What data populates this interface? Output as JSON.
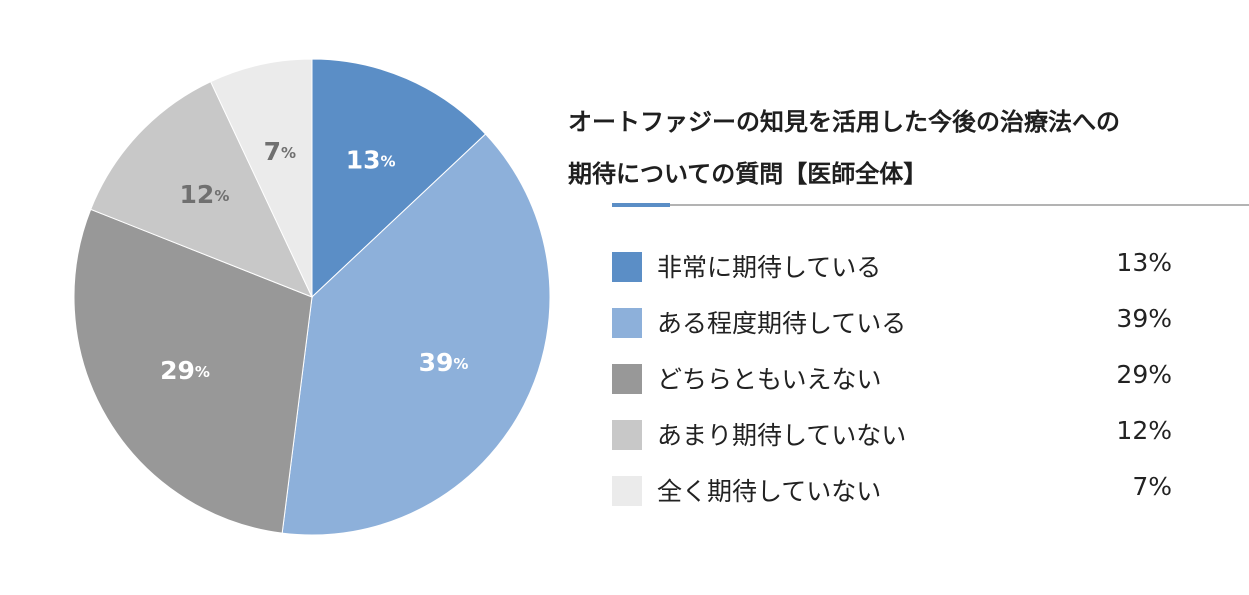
{
  "chart_data": {
    "type": "pie",
    "title_lines": [
      "オートファジーの知見を活用した今後の治療法への",
      "期待についての質問【医師全体】"
    ],
    "categories": [
      "非常に期待している",
      "ある程度期待している",
      "どちらともいえない",
      "あまり期待していない",
      "全く期待していない"
    ],
    "values": [
      13,
      39,
      29,
      12,
      7
    ],
    "value_labels": [
      "13%",
      "39%",
      "29%",
      "12%",
      "7%"
    ],
    "colors": [
      "#5b8ec6",
      "#8db0da",
      "#989898",
      "#c8c8c8",
      "#ebebeb"
    ],
    "label_colors": [
      "#ffffff",
      "#ffffff",
      "#ffffff",
      "#707070",
      "#707070"
    ],
    "start": "12 o'clock",
    "direction": "clockwise",
    "legend_position": "right"
  }
}
